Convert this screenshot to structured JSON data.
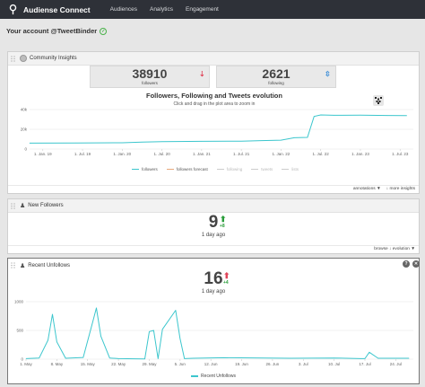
{
  "nav": {
    "brand": "Audiense Connect",
    "links": [
      "Audiences",
      "Analytics",
      "Engagement"
    ]
  },
  "account": {
    "title": "Your account @TweetBinder"
  },
  "community": {
    "title": "Community Insights",
    "followers": {
      "value": "38910",
      "label": "followers"
    },
    "following": {
      "value": "2621",
      "label": "following"
    },
    "chart_title": "Followers, Following and Tweets evolution",
    "chart_subtitle": "Click and drag in the plot area to zoom in",
    "legend": [
      "followers",
      "followers forecast",
      "following",
      "tweets",
      "lists"
    ],
    "footer": [
      "annotations ▼",
      "↓ more insights"
    ]
  },
  "new_followers": {
    "title": "New Followers",
    "count": "9",
    "delta": "+8",
    "ago": "1 day ago",
    "footer": "browse  ↓ evolution ▼"
  },
  "unfollows": {
    "title": "Recent Unfollows",
    "count": "16",
    "delta": "+4",
    "ago": "1 day ago",
    "legend": "Recent Unfollows"
  },
  "colors": {
    "nav": "#2e3138",
    "series": "#3cc6cd",
    "up": "#2a9d3a",
    "down": "#e0455a"
  },
  "chart_data": [
    {
      "type": "line",
      "title": "Followers, Following and Tweets evolution",
      "subtitle": "Click and drag in the plot area to zoom in",
      "x_ticks": [
        "1. Jan. 19",
        "1. Jul. 19",
        "1. Jan. 20",
        "1. Jul. 20",
        "1. Jan. 21",
        "1. Jul. 21",
        "1. Jan. 22",
        "1. Jul. 22",
        "1. Jan. 23",
        "1. Jul. 23"
      ],
      "y_ticks": [
        "0",
        "20k",
        "40k"
      ],
      "ylim": [
        0,
        40000
      ],
      "series": [
        {
          "name": "followers",
          "x": [
            "2018-11",
            "2019-06",
            "2020-01",
            "2020-04",
            "2020-07",
            "2021-01",
            "2021-07",
            "2021-10",
            "2022-01",
            "2022-03",
            "2022-05",
            "2022-06",
            "2022-07",
            "2022-09",
            "2023-01",
            "2023-05",
            "2023-08"
          ],
          "values": [
            6000,
            6200,
            6400,
            7000,
            7500,
            7800,
            8000,
            8500,
            9000,
            11500,
            11800,
            33000,
            34500,
            34200,
            34400,
            34000,
            33800
          ]
        }
      ],
      "legend": "bottom"
    },
    {
      "type": "line",
      "x_ticks": [
        "1. May",
        "8. May",
        "15. May",
        "22. May",
        "29. May",
        "5. Jun",
        "12. Jun",
        "19. Jun",
        "26. Jun",
        "3. Jul",
        "10. Jul",
        "17. Jul",
        "24. Jul"
      ],
      "y_ticks": [
        "0",
        "500",
        "1000"
      ],
      "ylim": [
        0,
        1000
      ],
      "series": [
        {
          "name": "Recent Unfollows",
          "x": [
            0,
            3,
            5,
            6,
            7,
            9,
            13,
            15,
            16,
            17,
            19,
            21,
            27,
            28,
            29,
            30,
            31,
            34,
            35,
            36,
            38,
            45,
            60,
            70,
            76,
            77,
            78,
            80,
            87
          ],
          "values": [
            10,
            20,
            330,
            780,
            300,
            15,
            30,
            600,
            890,
            400,
            20,
            10,
            5,
            480,
            500,
            10,
            520,
            850,
            360,
            10,
            15,
            25,
            15,
            20,
            10,
            10,
            120,
            15,
            15
          ]
        }
      ],
      "legend": "bottom"
    }
  ]
}
